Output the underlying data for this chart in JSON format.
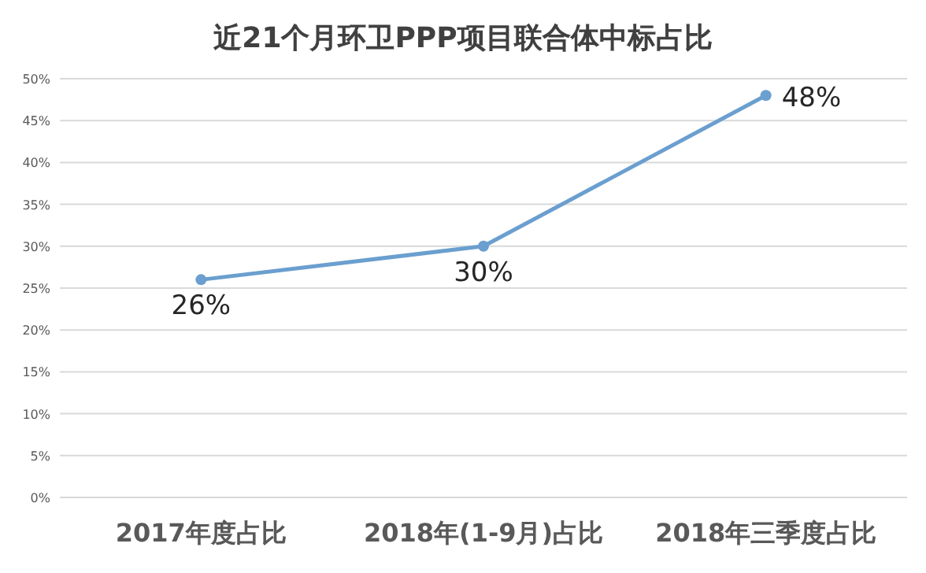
{
  "chart_data": {
    "type": "line",
    "title": "近21个月环卫PPP项目联合体中标占比",
    "categories": [
      "2017年度占比",
      "2018年(1-9月)占比",
      "2018年三季度占比"
    ],
    "series": [
      {
        "color": "#6a9fcf",
        "values": [
          26,
          30,
          48
        ],
        "value_labels": [
          "26%",
          "30%",
          "48%"
        ]
      }
    ],
    "ylim": [
      0,
      50
    ],
    "yticks": [
      {
        "value": 0,
        "label": "0%"
      },
      {
        "value": 5,
        "label": "5%"
      },
      {
        "value": 10,
        "label": "10%"
      },
      {
        "value": 15,
        "label": "15%"
      },
      {
        "value": 20,
        "label": "20%"
      },
      {
        "value": 25,
        "label": "25%"
      },
      {
        "value": 30,
        "label": "30%"
      },
      {
        "value": 35,
        "label": "35%"
      },
      {
        "value": 40,
        "label": "40%"
      },
      {
        "value": 45,
        "label": "45%"
      },
      {
        "value": 50,
        "label": "50%"
      }
    ],
    "grid": "y",
    "marker": "circle",
    "line_style": "solid"
  }
}
